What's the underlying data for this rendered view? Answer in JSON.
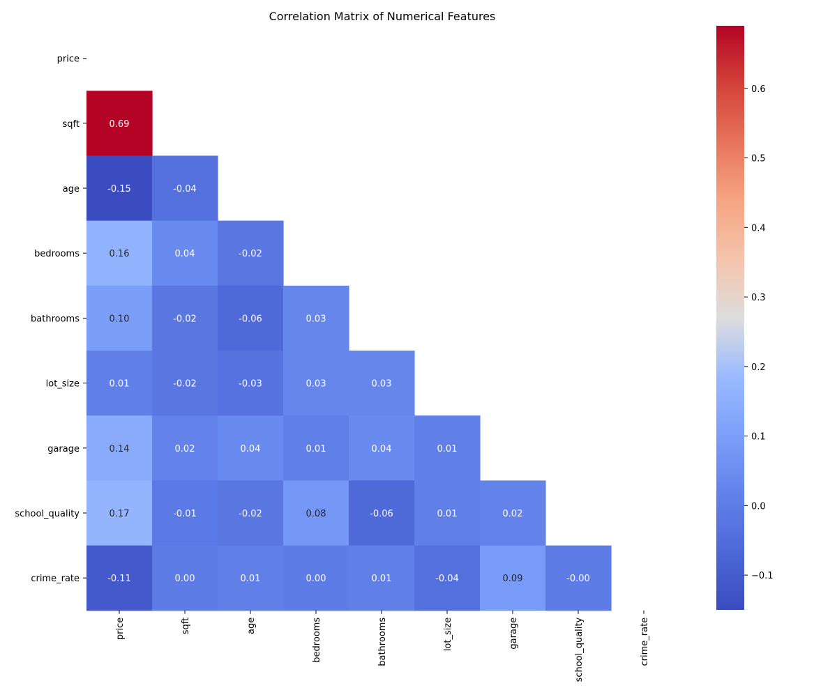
{
  "chart_data": {
    "type": "heatmap",
    "title": "Correlation Matrix of Numerical Features",
    "xlabel": "",
    "ylabel": "",
    "variables": [
      "price",
      "sqft",
      "age",
      "bedrooms",
      "bathrooms",
      "lot_size",
      "garage",
      "school_quality",
      "crime_rate"
    ],
    "mask": "upper-triangle-including-diagonal",
    "matrix": [
      [
        null,
        null,
        null,
        null,
        null,
        null,
        null,
        null,
        null
      ],
      [
        0.69,
        null,
        null,
        null,
        null,
        null,
        null,
        null,
        null
      ],
      [
        -0.15,
        -0.04,
        null,
        null,
        null,
        null,
        null,
        null,
        null
      ],
      [
        0.16,
        0.04,
        -0.02,
        null,
        null,
        null,
        null,
        null,
        null
      ],
      [
        0.1,
        -0.02,
        -0.06,
        0.03,
        null,
        null,
        null,
        null,
        null
      ],
      [
        0.01,
        -0.02,
        -0.03,
        0.03,
        0.03,
        null,
        null,
        null,
        null
      ],
      [
        0.14,
        0.02,
        0.04,
        0.01,
        0.04,
        0.01,
        null,
        null,
        null
      ],
      [
        0.17,
        -0.01,
        -0.02,
        0.08,
        -0.06,
        0.01,
        0.02,
        null,
        null
      ],
      [
        -0.11,
        0.0,
        0.01,
        0.0,
        0.01,
        -0.04,
        0.09,
        -0.0,
        null
      ]
    ],
    "labels": [
      [
        null,
        null,
        null,
        null,
        null,
        null,
        null,
        null,
        null
      ],
      [
        "0.69",
        null,
        null,
        null,
        null,
        null,
        null,
        null,
        null
      ],
      [
        "-0.15",
        "-0.04",
        null,
        null,
        null,
        null,
        null,
        null,
        null
      ],
      [
        "0.16",
        "0.04",
        "-0.02",
        null,
        null,
        null,
        null,
        null,
        null
      ],
      [
        "0.10",
        "-0.02",
        "-0.06",
        "0.03",
        null,
        null,
        null,
        null,
        null
      ],
      [
        "0.01",
        "-0.02",
        "-0.03",
        "0.03",
        "0.03",
        null,
        null,
        null,
        null
      ],
      [
        "0.14",
        "0.02",
        "0.04",
        "0.01",
        "0.04",
        "0.01",
        null,
        null,
        null
      ],
      [
        "0.17",
        "-0.01",
        "-0.02",
        "0.08",
        "-0.06",
        "0.01",
        "0.02",
        null,
        null
      ],
      [
        "-0.11",
        "0.00",
        "0.01",
        "0.00",
        "0.01",
        "-0.04",
        "0.09",
        "-0.00",
        null
      ]
    ],
    "colormap": "coolwarm",
    "colorbar": {
      "vmin": -0.15,
      "vmax": 0.69,
      "ticks": [
        -0.1,
        0.0,
        0.1,
        0.2,
        0.3,
        0.4,
        0.5,
        0.6
      ],
      "tick_labels": [
        "−0.1",
        "0.0",
        "0.1",
        "0.2",
        "0.3",
        "0.4",
        "0.5",
        "0.6"
      ]
    }
  }
}
